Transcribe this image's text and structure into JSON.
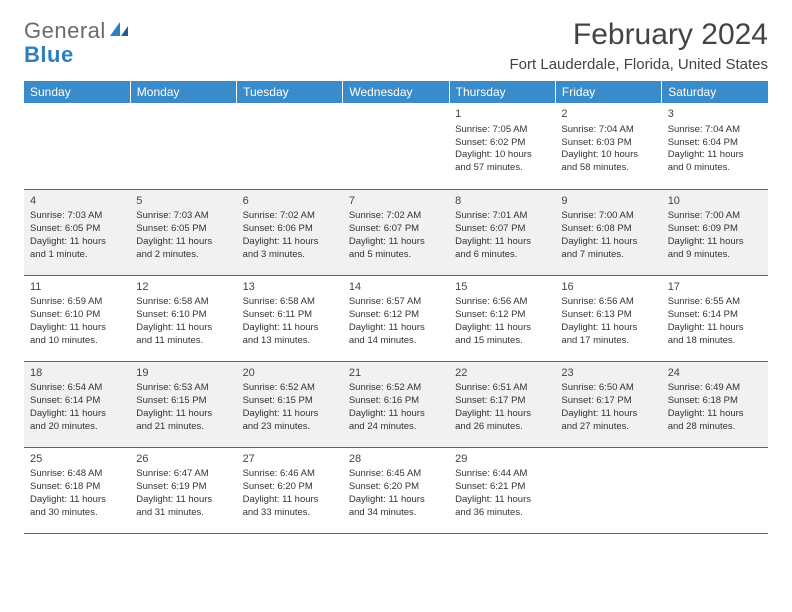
{
  "logo": {
    "text1": "General",
    "text2": "Blue"
  },
  "title": "February 2024",
  "location": "Fort Lauderdale, Florida, United States",
  "weekdays": [
    "Sunday",
    "Monday",
    "Tuesday",
    "Wednesday",
    "Thursday",
    "Friday",
    "Saturday"
  ],
  "colors": {
    "header_bg": "#3a8bc9",
    "header_text": "#ffffff",
    "row_border": "#3a6a9a",
    "alt_row_bg": "#f1f1f1",
    "logo_gray": "#6b6b6b",
    "logo_blue": "#2f7fbf"
  },
  "weeks": [
    {
      "alt": false,
      "days": [
        null,
        null,
        null,
        null,
        {
          "n": "1",
          "sunrise": "Sunrise: 7:05 AM",
          "sunset": "Sunset: 6:02 PM",
          "daylight": "Daylight: 10 hours and 57 minutes."
        },
        {
          "n": "2",
          "sunrise": "Sunrise: 7:04 AM",
          "sunset": "Sunset: 6:03 PM",
          "daylight": "Daylight: 10 hours and 58 minutes."
        },
        {
          "n": "3",
          "sunrise": "Sunrise: 7:04 AM",
          "sunset": "Sunset: 6:04 PM",
          "daylight": "Daylight: 11 hours and 0 minutes."
        }
      ]
    },
    {
      "alt": true,
      "days": [
        {
          "n": "4",
          "sunrise": "Sunrise: 7:03 AM",
          "sunset": "Sunset: 6:05 PM",
          "daylight": "Daylight: 11 hours and 1 minute."
        },
        {
          "n": "5",
          "sunrise": "Sunrise: 7:03 AM",
          "sunset": "Sunset: 6:05 PM",
          "daylight": "Daylight: 11 hours and 2 minutes."
        },
        {
          "n": "6",
          "sunrise": "Sunrise: 7:02 AM",
          "sunset": "Sunset: 6:06 PM",
          "daylight": "Daylight: 11 hours and 3 minutes."
        },
        {
          "n": "7",
          "sunrise": "Sunrise: 7:02 AM",
          "sunset": "Sunset: 6:07 PM",
          "daylight": "Daylight: 11 hours and 5 minutes."
        },
        {
          "n": "8",
          "sunrise": "Sunrise: 7:01 AM",
          "sunset": "Sunset: 6:07 PM",
          "daylight": "Daylight: 11 hours and 6 minutes."
        },
        {
          "n": "9",
          "sunrise": "Sunrise: 7:00 AM",
          "sunset": "Sunset: 6:08 PM",
          "daylight": "Daylight: 11 hours and 7 minutes."
        },
        {
          "n": "10",
          "sunrise": "Sunrise: 7:00 AM",
          "sunset": "Sunset: 6:09 PM",
          "daylight": "Daylight: 11 hours and 9 minutes."
        }
      ]
    },
    {
      "alt": false,
      "days": [
        {
          "n": "11",
          "sunrise": "Sunrise: 6:59 AM",
          "sunset": "Sunset: 6:10 PM",
          "daylight": "Daylight: 11 hours and 10 minutes."
        },
        {
          "n": "12",
          "sunrise": "Sunrise: 6:58 AM",
          "sunset": "Sunset: 6:10 PM",
          "daylight": "Daylight: 11 hours and 11 minutes."
        },
        {
          "n": "13",
          "sunrise": "Sunrise: 6:58 AM",
          "sunset": "Sunset: 6:11 PM",
          "daylight": "Daylight: 11 hours and 13 minutes."
        },
        {
          "n": "14",
          "sunrise": "Sunrise: 6:57 AM",
          "sunset": "Sunset: 6:12 PM",
          "daylight": "Daylight: 11 hours and 14 minutes."
        },
        {
          "n": "15",
          "sunrise": "Sunrise: 6:56 AM",
          "sunset": "Sunset: 6:12 PM",
          "daylight": "Daylight: 11 hours and 15 minutes."
        },
        {
          "n": "16",
          "sunrise": "Sunrise: 6:56 AM",
          "sunset": "Sunset: 6:13 PM",
          "daylight": "Daylight: 11 hours and 17 minutes."
        },
        {
          "n": "17",
          "sunrise": "Sunrise: 6:55 AM",
          "sunset": "Sunset: 6:14 PM",
          "daylight": "Daylight: 11 hours and 18 minutes."
        }
      ]
    },
    {
      "alt": true,
      "days": [
        {
          "n": "18",
          "sunrise": "Sunrise: 6:54 AM",
          "sunset": "Sunset: 6:14 PM",
          "daylight": "Daylight: 11 hours and 20 minutes."
        },
        {
          "n": "19",
          "sunrise": "Sunrise: 6:53 AM",
          "sunset": "Sunset: 6:15 PM",
          "daylight": "Daylight: 11 hours and 21 minutes."
        },
        {
          "n": "20",
          "sunrise": "Sunrise: 6:52 AM",
          "sunset": "Sunset: 6:15 PM",
          "daylight": "Daylight: 11 hours and 23 minutes."
        },
        {
          "n": "21",
          "sunrise": "Sunrise: 6:52 AM",
          "sunset": "Sunset: 6:16 PM",
          "daylight": "Daylight: 11 hours and 24 minutes."
        },
        {
          "n": "22",
          "sunrise": "Sunrise: 6:51 AM",
          "sunset": "Sunset: 6:17 PM",
          "daylight": "Daylight: 11 hours and 26 minutes."
        },
        {
          "n": "23",
          "sunrise": "Sunrise: 6:50 AM",
          "sunset": "Sunset: 6:17 PM",
          "daylight": "Daylight: 11 hours and 27 minutes."
        },
        {
          "n": "24",
          "sunrise": "Sunrise: 6:49 AM",
          "sunset": "Sunset: 6:18 PM",
          "daylight": "Daylight: 11 hours and 28 minutes."
        }
      ]
    },
    {
      "alt": false,
      "days": [
        {
          "n": "25",
          "sunrise": "Sunrise: 6:48 AM",
          "sunset": "Sunset: 6:18 PM",
          "daylight": "Daylight: 11 hours and 30 minutes."
        },
        {
          "n": "26",
          "sunrise": "Sunrise: 6:47 AM",
          "sunset": "Sunset: 6:19 PM",
          "daylight": "Daylight: 11 hours and 31 minutes."
        },
        {
          "n": "27",
          "sunrise": "Sunrise: 6:46 AM",
          "sunset": "Sunset: 6:20 PM",
          "daylight": "Daylight: 11 hours and 33 minutes."
        },
        {
          "n": "28",
          "sunrise": "Sunrise: 6:45 AM",
          "sunset": "Sunset: 6:20 PM",
          "daylight": "Daylight: 11 hours and 34 minutes."
        },
        {
          "n": "29",
          "sunrise": "Sunrise: 6:44 AM",
          "sunset": "Sunset: 6:21 PM",
          "daylight": "Daylight: 11 hours and 36 minutes."
        },
        null,
        null
      ]
    }
  ]
}
